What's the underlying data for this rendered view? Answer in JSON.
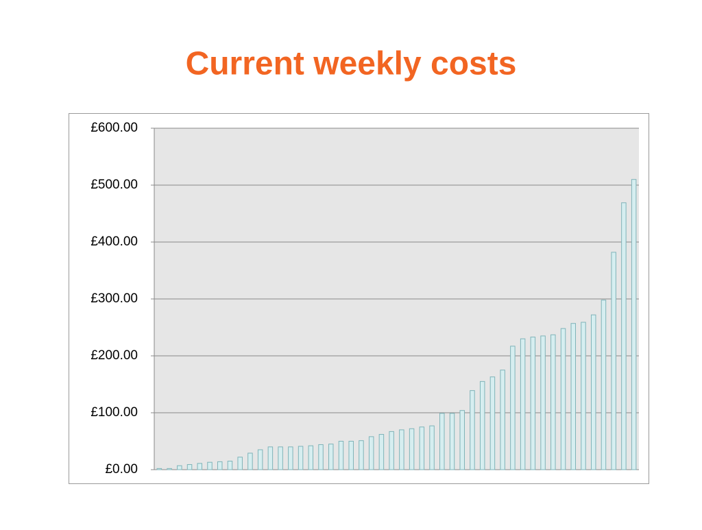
{
  "chart_data": {
    "type": "bar",
    "title": "Current weekly costs",
    "categories": [
      null,
      null,
      null,
      null,
      null,
      null,
      null,
      null,
      null,
      null,
      null,
      null,
      null,
      null,
      null,
      null,
      null,
      null,
      null,
      null,
      null,
      null,
      null,
      null,
      null,
      null,
      null,
      null,
      null,
      null,
      null,
      null,
      null,
      null,
      null,
      null,
      null,
      null,
      null,
      null,
      null,
      null,
      null,
      null,
      null,
      null,
      null,
      null
    ],
    "values": [
      2,
      2,
      7,
      9,
      11,
      13,
      14,
      15,
      22,
      29,
      35,
      40,
      40,
      40,
      41,
      42,
      44,
      45,
      50,
      50,
      51,
      58,
      62,
      67,
      70,
      72,
      75,
      77,
      99,
      99,
      104,
      139,
      155,
      163,
      175,
      217,
      230,
      233,
      235,
      237,
      248,
      257,
      259,
      272,
      298,
      382,
      469,
      510
    ],
    "color": "#d6eef0",
    "ylim": [
      0,
      600
    ],
    "yticks": [
      {
        "value": 0,
        "label": "£0.00"
      },
      {
        "value": 100,
        "label": "£100.00"
      },
      {
        "value": 200,
        "label": "£200.00"
      },
      {
        "value": 300,
        "label": "£300.00"
      },
      {
        "value": 400,
        "label": "£400.00"
      },
      {
        "value": 500,
        "label": "£500.00"
      },
      {
        "value": 600,
        "label": "£600.00"
      }
    ],
    "grid": true
  }
}
